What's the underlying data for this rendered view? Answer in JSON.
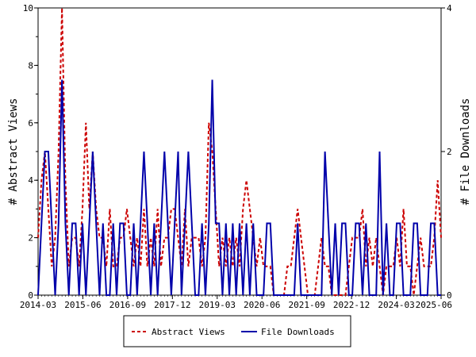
{
  "chart_data": {
    "type": "line",
    "title": "",
    "xlabel": "",
    "ylabel": "# Abstract Views",
    "y2label": "# File Downloads",
    "x_tick_labels": [
      "2014-03",
      "2015-06",
      "2016-09",
      "2017-12",
      "2019-03",
      "2020-06",
      "2021-09",
      "2022-12",
      "2024-03",
      "2025-06"
    ],
    "ylim": [
      0,
      10
    ],
    "y_ticks": [
      "0",
      "2",
      "4",
      "6",
      "8",
      "10"
    ],
    "y2lim": [
      0,
      4
    ],
    "y2_ticks": [
      "0",
      "2",
      "4"
    ],
    "grid": false,
    "legend_position": "bottom",
    "series": [
      {
        "name": "Abstract Views",
        "axis": "left",
        "color": "#cc0000",
        "style": "dashed",
        "values": [
          2,
          4,
          5,
          3,
          1,
          2,
          5,
          10,
          4,
          1,
          2,
          2,
          1,
          3,
          6,
          3,
          5,
          3,
          2,
          2,
          1,
          3,
          1,
          1,
          2,
          2,
          3,
          2,
          1,
          2,
          1,
          3,
          1,
          2,
          1,
          3,
          1,
          2,
          2,
          3,
          3,
          2,
          1,
          3,
          1,
          2,
          2,
          2,
          1,
          2,
          6,
          5,
          3,
          1,
          2,
          1,
          2,
          1,
          2,
          1,
          3,
          4,
          3,
          2,
          1,
          2,
          1,
          1,
          1,
          0,
          0,
          0,
          0,
          1,
          1,
          2,
          3,
          2,
          1,
          0,
          0,
          0,
          1,
          2,
          1,
          1,
          0,
          0,
          0,
          0,
          0,
          1,
          2,
          2,
          2,
          3,
          1,
          2,
          1,
          2,
          1,
          0,
          1,
          1,
          1,
          2,
          1,
          3,
          1,
          1,
          0,
          1,
          2,
          1,
          1,
          1,
          2,
          4,
          2
        ]
      },
      {
        "name": "File Downloads",
        "axis": "right",
        "color": "#0000aa",
        "style": "solid",
        "values": [
          0,
          1,
          2,
          2,
          1,
          0,
          1,
          3,
          1,
          0,
          1,
          1,
          0,
          1,
          0,
          1,
          2,
          1,
          0,
          1,
          0,
          0,
          1,
          0,
          1,
          1,
          0,
          0,
          1,
          0,
          1,
          2,
          1,
          0,
          1,
          0,
          1,
          2,
          1,
          0,
          1,
          2,
          0,
          1,
          2,
          1,
          0,
          0,
          1,
          0,
          1,
          3,
          1,
          1,
          0,
          1,
          0,
          1,
          0,
          1,
          0,
          1,
          0,
          1,
          0,
          0,
          0,
          1,
          1,
          0,
          0,
          0,
          0,
          0,
          0,
          0,
          1,
          0,
          0,
          0,
          0,
          0,
          0,
          0,
          2,
          1,
          0,
          1,
          0,
          1,
          1,
          0,
          0,
          1,
          1,
          0,
          1,
          0,
          0,
          0,
          2,
          0,
          1,
          0,
          0,
          1,
          1,
          0,
          0,
          0,
          1,
          1,
          0,
          0,
          0,
          1,
          1,
          0,
          0
        ]
      }
    ]
  }
}
